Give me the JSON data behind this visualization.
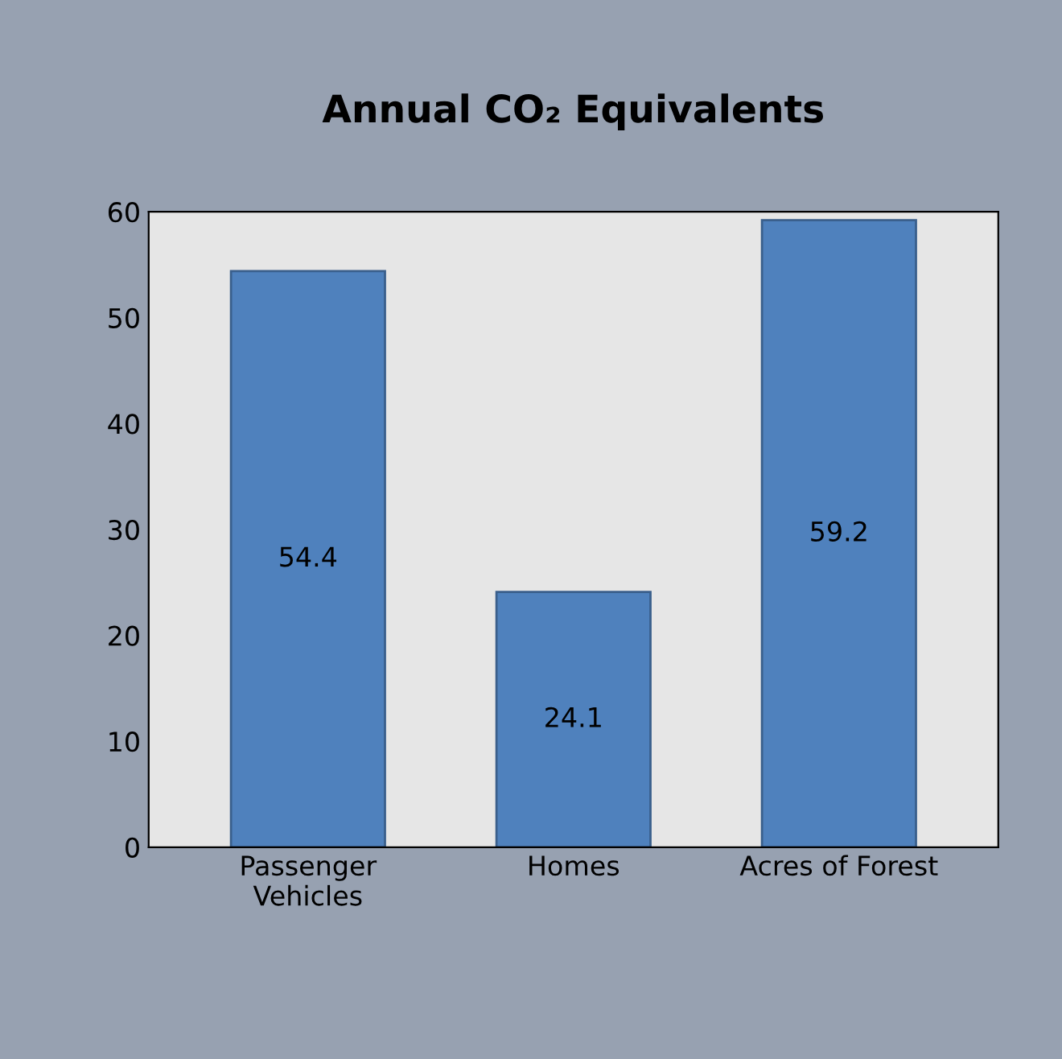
{
  "chart_data": {
    "type": "bar",
    "title": "Annual CO₂ Equivalents",
    "categories": [
      "Passenger\nVehicles",
      "Homes",
      "Acres of Forest"
    ],
    "values": [
      54.4,
      24.1,
      59.2
    ],
    "color": "#4f81bd",
    "ylim": [
      0,
      60
    ],
    "yticks": [
      0,
      10,
      20,
      30,
      40,
      50,
      60
    ],
    "grid": false,
    "data_labels": true
  }
}
